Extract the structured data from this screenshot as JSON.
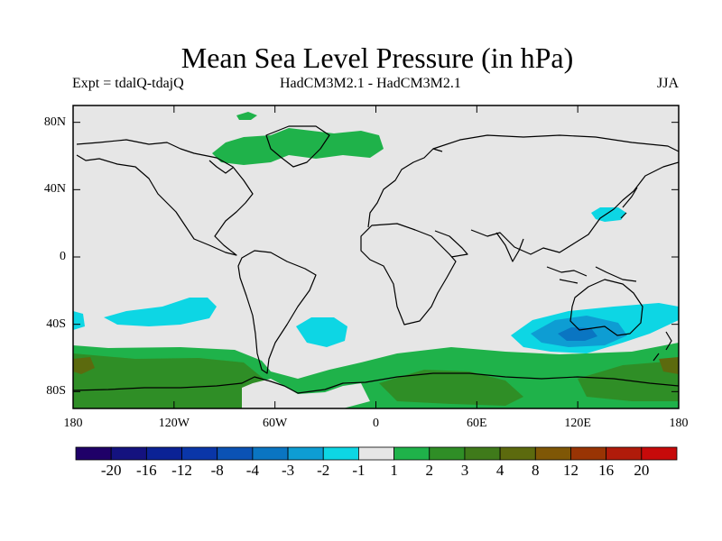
{
  "title": "Mean Sea Level Pressure (in hPa)",
  "subtitle_left": "Expt = tdalQ-tdajQ",
  "subtitle_center": "HadCM3M2.1 - HadCM3M2.1",
  "subtitle_right": "JJA",
  "map": {
    "projection": "cylindrical-equidistant",
    "lon_range": [
      -180,
      180
    ],
    "lat_range": [
      -90,
      90
    ],
    "background_color": "#e6e6e6",
    "y_ticks": [
      {
        "lat": 80,
        "label": "80N"
      },
      {
        "lat": 40,
        "label": "40N"
      },
      {
        "lat": 0,
        "label": "0"
      },
      {
        "lat": -40,
        "label": "40S"
      },
      {
        "lat": -80,
        "label": "80S"
      }
    ],
    "x_ticks": [
      {
        "lon": -180,
        "label": "180"
      },
      {
        "lon": -120,
        "label": "120W"
      },
      {
        "lon": -60,
        "label": "60W"
      },
      {
        "lon": 0,
        "label": "0"
      },
      {
        "lon": 60,
        "label": "60E"
      },
      {
        "lon": 120,
        "label": "120E"
      },
      {
        "lon": 180,
        "label": "180"
      }
    ]
  },
  "colorbar": {
    "colors": [
      "#1f0068",
      "#14127f",
      "#0b2295",
      "#0a36a8",
      "#0b52b4",
      "#0a75c2",
      "#0e9dd3",
      "#0dd6e4",
      "#e6e6e6",
      "#1fb24a",
      "#2f8e26",
      "#3f7a1a",
      "#5c6a0e",
      "#7f5706",
      "#993404",
      "#b01b0a",
      "#c70a0a"
    ],
    "levels": [
      "-20",
      "-16",
      "-12",
      "-8",
      "-4",
      "-3",
      "-2",
      "-1",
      "1",
      "2",
      "3",
      "4",
      "8",
      "12",
      "16",
      "20"
    ]
  }
}
